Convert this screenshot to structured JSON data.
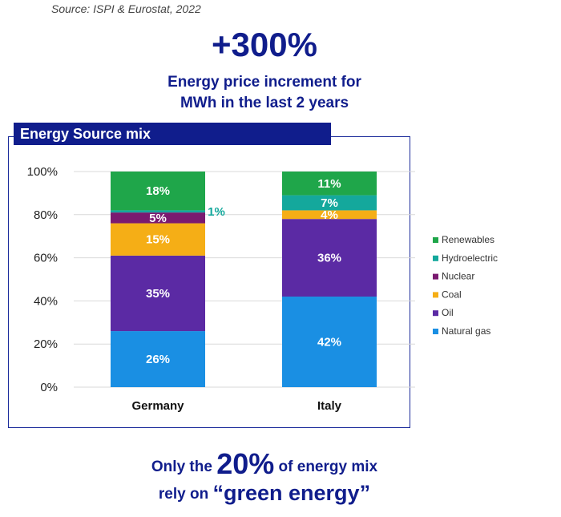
{
  "source": "Source: ISPI & Eurostat, 2022",
  "headline": {
    "value": "+300%",
    "line1": "Energy price increment for",
    "line2": "MWh in the last 2 years"
  },
  "footer": {
    "line1_pre": "Only the",
    "line1_highlight": "20%",
    "line1_post": "of energy mix",
    "line2_pre": "rely on",
    "line2_highlight": "“green energy”"
  },
  "chart_data": {
    "type": "bar",
    "stacked": true,
    "title": "Energy Source mix",
    "categories": [
      "Germany",
      "Italy"
    ],
    "ylim": [
      0,
      100
    ],
    "yticks": [
      "0%",
      "20%",
      "40%",
      "60%",
      "80%",
      "100%"
    ],
    "ytick_values": [
      0,
      20,
      40,
      60,
      80,
      100
    ],
    "grid": true,
    "legend_position": "right",
    "series": [
      {
        "name": "Natural gas",
        "color": "#1a8fe3",
        "values": [
          26,
          42
        ],
        "labels": [
          "26%",
          "42%"
        ]
      },
      {
        "name": "Oil",
        "color": "#5b2aa4",
        "values": [
          35,
          36
        ],
        "labels": [
          "35%",
          "36%"
        ]
      },
      {
        "name": "Coal",
        "color": "#f5ae16",
        "values": [
          15,
          4
        ],
        "labels": [
          "15%",
          "4%"
        ]
      },
      {
        "name": "Nuclear",
        "color": "#7a1a70",
        "values": [
          5,
          0
        ],
        "labels": [
          "5%",
          ""
        ]
      },
      {
        "name": "Hydroelectric",
        "color": "#14a89c",
        "values": [
          1,
          7
        ],
        "labels": [
          "1%",
          "7%"
        ]
      },
      {
        "name": "Renewables",
        "color": "#1fa64a",
        "values": [
          18,
          11
        ],
        "labels": [
          "18%",
          "11%"
        ]
      }
    ]
  }
}
